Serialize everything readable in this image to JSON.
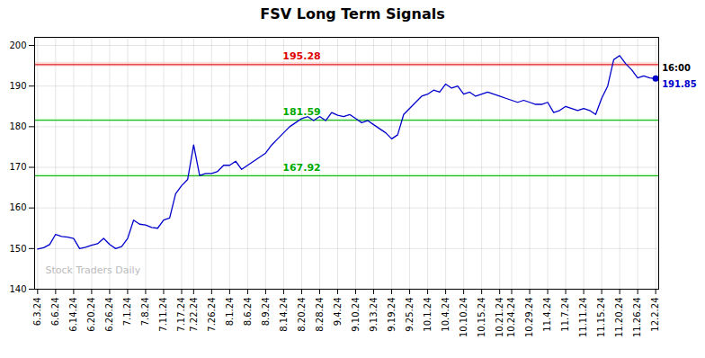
{
  "chart_data": {
    "type": "line",
    "title": "FSV Long Term Signals",
    "categories": [
      "6.3.24",
      null,
      null,
      "6.6.24",
      null,
      null,
      "6.14.24",
      null,
      null,
      "6.20.24",
      null,
      null,
      "6.26.24",
      null,
      null,
      "7.1.24",
      null,
      null,
      "7.8.24",
      null,
      null,
      "7.11.24",
      null,
      null,
      "7.17.24",
      null,
      "7.22.24",
      null,
      null,
      "7.26.24",
      null,
      null,
      "8.1.24",
      null,
      null,
      "8.6.24",
      null,
      null,
      "8.9.24",
      null,
      null,
      "8.14.24",
      null,
      null,
      "8.20.24",
      null,
      null,
      "8.28.24",
      null,
      null,
      "9.4.24",
      null,
      null,
      "9.10.24",
      null,
      null,
      "9.13.24",
      null,
      null,
      "9.19.24",
      null,
      null,
      "9.25.24",
      null,
      null,
      "10.1.24",
      null,
      null,
      "10.4.24",
      null,
      null,
      "10.10.24",
      null,
      null,
      "10.15.24",
      null,
      null,
      "10.21.24",
      null,
      "10.24.24",
      null,
      null,
      "10.29.24",
      null,
      null,
      "11.4.24",
      null,
      null,
      "11.7.24",
      null,
      null,
      "11.11.24",
      null,
      null,
      "11.15.24",
      null,
      null,
      "11.20.24",
      null,
      null,
      "11.26.24",
      null,
      null,
      "12.2.24"
    ],
    "values": [
      149.9,
      150.2,
      151.0,
      153.5,
      153.0,
      152.8,
      152.5,
      150.0,
      150.3,
      150.8,
      151.2,
      152.5,
      151.0,
      150.0,
      150.5,
      152.5,
      157.0,
      156.0,
      155.8,
      155.2,
      155.0,
      157.0,
      157.5,
      163.5,
      165.5,
      167.0,
      175.5,
      168.0,
      168.5,
      168.5,
      169.0,
      170.5,
      170.5,
      171.5,
      169.5,
      170.5,
      171.5,
      172.5,
      173.5,
      175.5,
      177.0,
      178.5,
      180.0,
      181.0,
      182.0,
      182.5,
      181.5,
      182.5,
      181.5,
      183.5,
      182.8,
      182.5,
      183.0,
      182.0,
      181.0,
      181.5,
      180.5,
      179.5,
      178.5,
      177.0,
      178.0,
      183.0,
      184.5,
      186.0,
      187.5,
      188.0,
      189.0,
      188.5,
      190.5,
      189.5,
      190.0,
      188.0,
      188.5,
      187.5,
      188.0,
      188.5,
      188.0,
      187.5,
      187.0,
      186.5,
      186.0,
      186.5,
      186.0,
      185.5,
      185.5,
      186.0,
      183.5,
      184.0,
      185.0,
      184.5,
      184.0,
      184.5,
      184.0,
      183.0,
      187.0,
      190.0,
      196.5,
      197.5,
      195.5,
      194.0,
      192.0,
      192.5,
      192.0,
      191.85
    ],
    "color": "#0000cc",
    "ylim": [
      140,
      202
    ],
    "yticks": [
      140,
      150,
      160,
      170,
      180,
      190,
      200
    ],
    "grid": true,
    "levels": [
      {
        "value": 195.28,
        "label": "195.28",
        "color": "#dd0000",
        "band_color": "#ffaaaa",
        "band_half_width": 0.55
      },
      {
        "value": 181.59,
        "label": "181.59",
        "color": "#00aa00",
        "band_color": "#aaffaa",
        "band_half_width": 0.35
      },
      {
        "value": 167.92,
        "label": "167.92",
        "color": "#00aa00",
        "band_color": "#aaffaa",
        "band_half_width": 0.35
      }
    ],
    "annotations": [
      {
        "text": "16:00",
        "color": "#000000"
      },
      {
        "text": "191.85",
        "color": "#0000cc"
      },
      {
        "text": "Stock Traders Daily",
        "color": "#bbbbbb"
      }
    ]
  }
}
